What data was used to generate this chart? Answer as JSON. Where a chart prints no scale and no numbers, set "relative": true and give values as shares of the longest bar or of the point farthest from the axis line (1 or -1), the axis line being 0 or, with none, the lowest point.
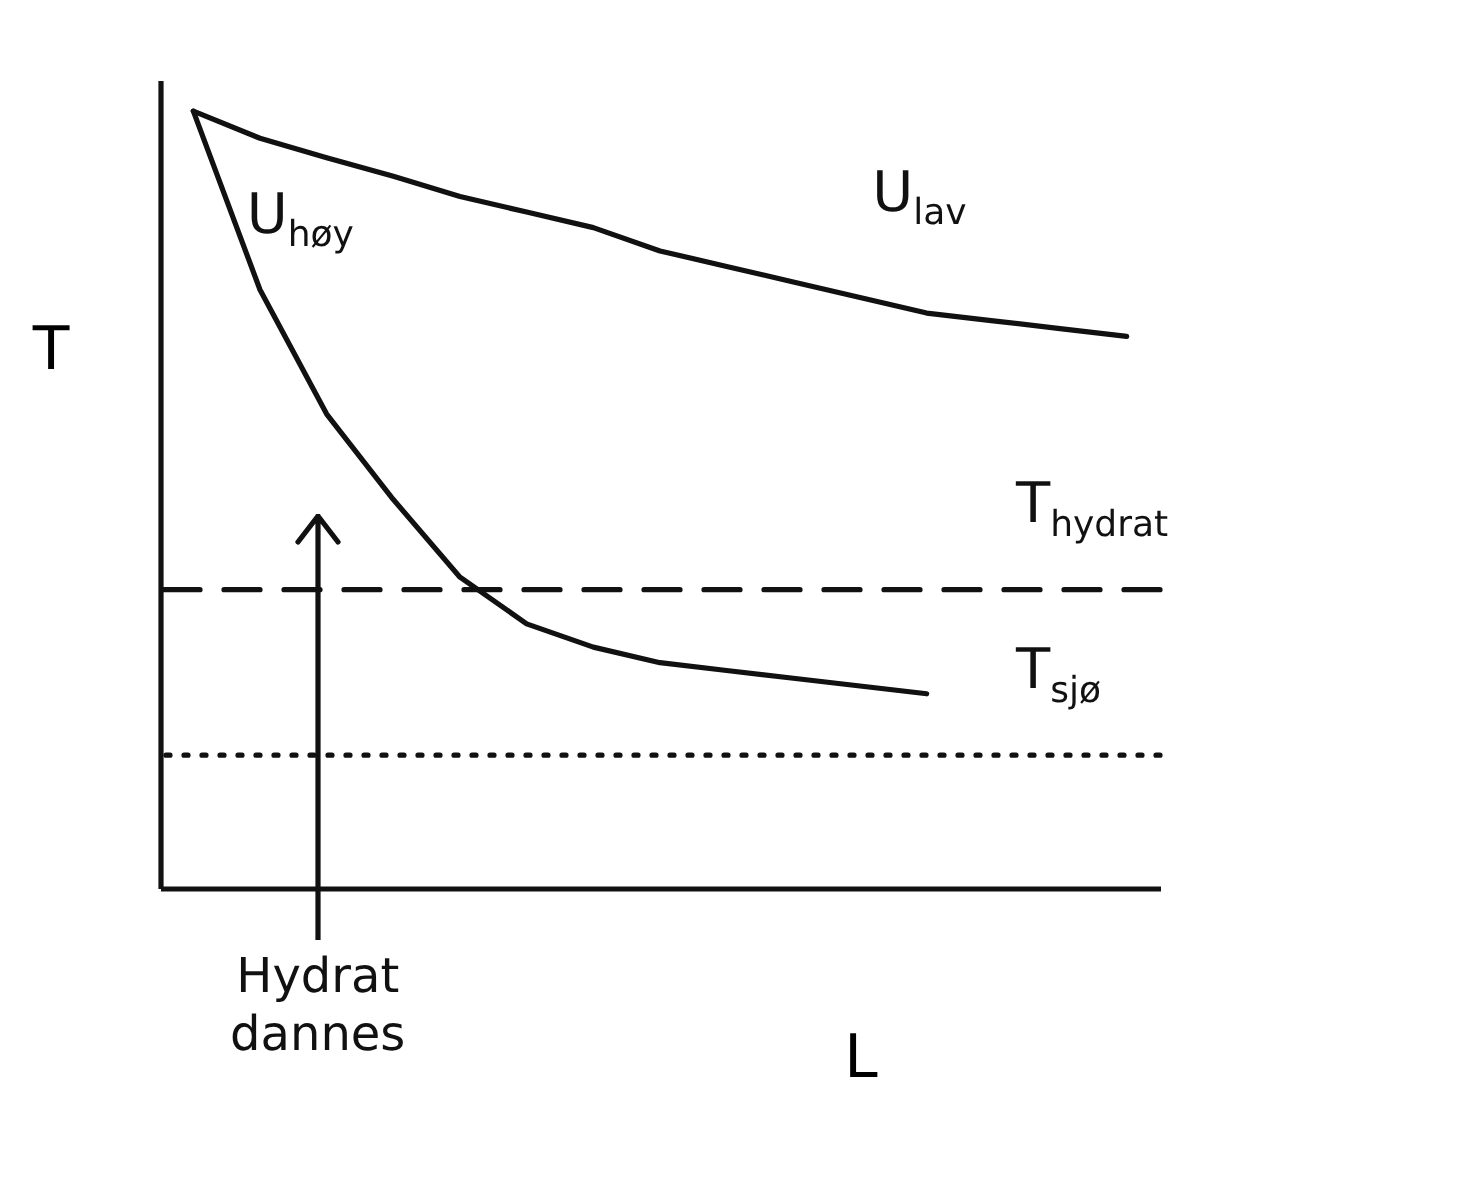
{
  "chart_data": {
    "type": "line",
    "relative": true,
    "xlabel": "L",
    "ylabel": "T",
    "tick_labels": false,
    "grid": false,
    "marker": "none",
    "line_style": "solid",
    "categories": [
      null,
      null,
      null,
      null,
      null,
      null,
      null,
      null,
      null,
      null,
      null,
      null,
      null,
      null,
      null
    ],
    "series": [
      {
        "name": "U$_{lav}$",
        "color": "#111111",
        "values": [
          1.0,
          0.965,
          0.94,
          0.916,
          0.89,
          0.87,
          0.85,
          0.82,
          0.8,
          0.78,
          0.76,
          0.74,
          0.73,
          0.72,
          0.71
        ]
      },
      {
        "name": "U$_{høy}$",
        "color": "#111111",
        "values": [
          1.0,
          0.77,
          0.61,
          0.5,
          0.4,
          0.34,
          0.31,
          0.29,
          0.28,
          0.27,
          0.26,
          0.25,
          null,
          null,
          null
        ]
      }
    ],
    "ref_lines": [
      {
        "axis": "y",
        "value": 0.384,
        "label": "T$_{hydrat}$",
        "color": "#111111",
        "line_style": "dashed"
      },
      {
        "axis": "y",
        "value": 0.171,
        "label": "T$_{sjø}$",
        "color": "#111111",
        "line_style": "dotted"
      }
    ],
    "annotations": [
      "Hydrat dannes"
    ]
  }
}
